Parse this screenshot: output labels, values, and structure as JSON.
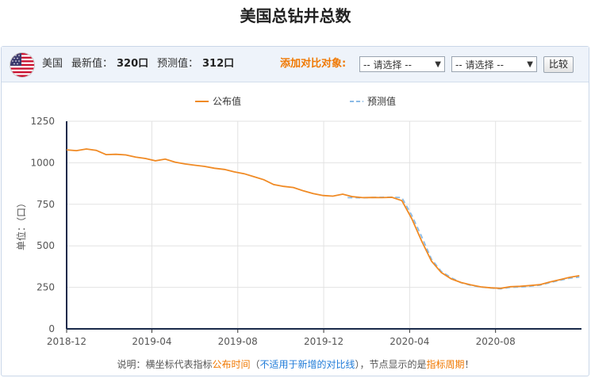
{
  "page": {
    "title": "美国总钻井总数"
  },
  "toolbar": {
    "flag_icon": "us-flag-icon",
    "country": "美国",
    "latest_label": "最新值：",
    "latest_value": "320口",
    "forecast_label": "预测值：",
    "forecast_value": "312口",
    "compare_label": "添加对比对象:",
    "select1": "-- 请选择 --",
    "select2": "-- 请选择 --",
    "compare_button": "比较"
  },
  "note": {
    "prefix": "说明：横坐标代表指标",
    "publish_time": "公布时间",
    "paren_open": "（",
    "not_applicable": "不适用于新增的对比线",
    "paren_close": "）",
    "middle": "，节点显示的是",
    "period": "指标周期",
    "suffix": "！"
  },
  "chart_data": {
    "type": "line",
    "title": "",
    "xlabel": "",
    "ylabel": "单位：（口）",
    "ylim": [
      0,
      1250
    ],
    "yticks": [
      0,
      250,
      500,
      750,
      1000,
      1250
    ],
    "xlim": [
      "2018-12",
      "2020-12"
    ],
    "xticks": [
      "2018-12",
      "2019-04",
      "2019-08",
      "2019-12",
      "2020-04",
      "2020-08"
    ],
    "legend": {
      "position": "top-center"
    },
    "grid": true,
    "series": [
      {
        "name": "公布值",
        "color": "#f08a24",
        "style": "solid",
        "points": [
          [
            "2018-12-01",
            1078
          ],
          [
            "2018-12-15",
            1073
          ],
          [
            "2018-12-29",
            1083
          ],
          [
            "2019-01-12",
            1075
          ],
          [
            "2019-01-26",
            1049
          ],
          [
            "2019-02-09",
            1051
          ],
          [
            "2019-02-23",
            1047
          ],
          [
            "2019-03-09",
            1034
          ],
          [
            "2019-03-23",
            1026
          ],
          [
            "2019-04-06",
            1012
          ],
          [
            "2019-04-20",
            1022
          ],
          [
            "2019-05-04",
            1004
          ],
          [
            "2019-05-18",
            993
          ],
          [
            "2019-06-01",
            985
          ],
          [
            "2019-06-15",
            978
          ],
          [
            "2019-06-29",
            967
          ],
          [
            "2019-07-13",
            960
          ],
          [
            "2019-07-27",
            945
          ],
          [
            "2019-08-10",
            934
          ],
          [
            "2019-08-24",
            916
          ],
          [
            "2019-09-07",
            898
          ],
          [
            "2019-09-21",
            869
          ],
          [
            "2019-10-05",
            858
          ],
          [
            "2019-10-19",
            851
          ],
          [
            "2019-11-02",
            831
          ],
          [
            "2019-11-16",
            815
          ],
          [
            "2019-11-30",
            803
          ],
          [
            "2019-12-14",
            799
          ],
          [
            "2019-12-28",
            811
          ],
          [
            "2020-01-11",
            796
          ],
          [
            "2020-01-25",
            790
          ],
          [
            "2020-02-08",
            791
          ],
          [
            "2020-02-22",
            790
          ],
          [
            "2020-03-07",
            792
          ],
          [
            "2020-03-21",
            772
          ],
          [
            "2020-04-04",
            664
          ],
          [
            "2020-04-18",
            529
          ],
          [
            "2020-05-02",
            408
          ],
          [
            "2020-05-16",
            339
          ],
          [
            "2020-05-30",
            301
          ],
          [
            "2020-06-13",
            279
          ],
          [
            "2020-06-27",
            265
          ],
          [
            "2020-07-11",
            253
          ],
          [
            "2020-07-25",
            247
          ],
          [
            "2020-08-08",
            244
          ],
          [
            "2020-08-22",
            254
          ],
          [
            "2020-09-05",
            256
          ],
          [
            "2020-09-19",
            261
          ],
          [
            "2020-10-03",
            266
          ],
          [
            "2020-10-17",
            282
          ],
          [
            "2020-10-31",
            296
          ],
          [
            "2020-11-14",
            310
          ],
          [
            "2020-11-28",
            320
          ]
        ]
      },
      {
        "name": "预测值",
        "color": "#8bbbe6",
        "style": "dashed",
        "points": [
          [
            "2020-01-04",
            790
          ],
          [
            "2020-01-25",
            789
          ],
          [
            "2020-02-15",
            792
          ],
          [
            "2020-03-07",
            793
          ],
          [
            "2020-03-21",
            790
          ],
          [
            "2020-04-04",
            684
          ],
          [
            "2020-04-18",
            556
          ],
          [
            "2020-05-02",
            420
          ],
          [
            "2020-05-16",
            346
          ],
          [
            "2020-05-30",
            308
          ],
          [
            "2020-06-13",
            278
          ],
          [
            "2020-06-27",
            262
          ],
          [
            "2020-07-11",
            252
          ],
          [
            "2020-07-25",
            246
          ],
          [
            "2020-08-08",
            241
          ],
          [
            "2020-08-22",
            250
          ],
          [
            "2020-09-05",
            252
          ],
          [
            "2020-09-19",
            257
          ],
          [
            "2020-10-03",
            263
          ],
          [
            "2020-10-17",
            278
          ],
          [
            "2020-10-31",
            292
          ],
          [
            "2020-11-14",
            305
          ],
          [
            "2020-11-28",
            312
          ]
        ]
      }
    ]
  }
}
